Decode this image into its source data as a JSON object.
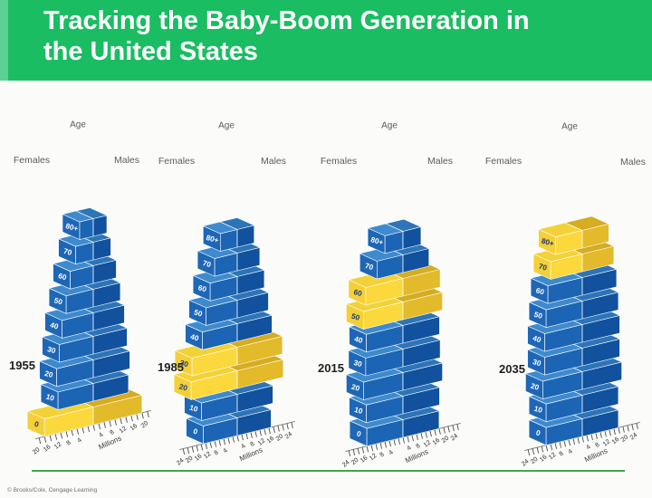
{
  "header": {
    "title_line1": "Tracking the Baby-Boom Generation in",
    "title_line2": "the United States",
    "bg_color": "#1abd62",
    "accent_strip_color": "#5bd092"
  },
  "labels": {
    "age": "Age",
    "females": "Females",
    "males": "Males"
  },
  "credit": "© Brooks/Cole, Cengage Learning",
  "footer": {
    "underline_color": "#43a649"
  },
  "colors": {
    "blue": {
      "front_f": "#1b65b4",
      "front_m": "#11519e",
      "top_f": "#3e8ace",
      "top_m": "#2d74b8",
      "cap": "#1e66b6",
      "label": "#ffffff"
    },
    "yellow": {
      "front_f": "#fbd83b",
      "front_m": "#e2ba2a",
      "top_f": "#f3d238",
      "top_m": "#d6ac20",
      "cap": "#f4cf38",
      "label": "#1c3a70"
    },
    "axis": {
      "line": "#7a7a7a",
      "tick": "#4a4a4a",
      "text": "#2c2c2c"
    }
  },
  "chart_data": [
    {
      "type": "population-pyramid",
      "year": "1955",
      "axis_unit": "Millions",
      "axis_max_millions": 20,
      "tick_step_millions": 2,
      "tick_label_step_millions": 4,
      "sides": [
        "Females",
        "Males"
      ],
      "age_groups": [
        "0",
        "10",
        "20",
        "30",
        "40",
        "50",
        "60",
        "70",
        "80+"
      ],
      "millions_per_side": [
        18,
        13,
        13.5,
        12.5,
        11.5,
        10,
        8.5,
        6.5,
        5
      ],
      "babyboom_ages": [
        "0"
      ]
    },
    {
      "type": "population-pyramid",
      "year": "1985",
      "axis_unit": "Millions",
      "axis_max_millions": 24,
      "tick_step_millions": 2,
      "tick_label_step_millions": 4,
      "sides": [
        "Females",
        "Males"
      ],
      "age_groups": [
        "0",
        "10",
        "20",
        "30",
        "40",
        "50",
        "60",
        "70",
        "80+"
      ],
      "millions_per_side": [
        15,
        15.8,
        20.4,
        20,
        15.4,
        13.8,
        12,
        10,
        7.5
      ],
      "babyboom_ages": [
        "20",
        "30"
      ]
    },
    {
      "type": "population-pyramid",
      "year": "2015",
      "axis_unit": "Millions",
      "axis_max_millions": 24,
      "tick_step_millions": 2,
      "tick_label_step_millions": 4,
      "sides": [
        "Females",
        "Males"
      ],
      "age_groups": [
        "0",
        "10",
        "20",
        "30",
        "40",
        "50",
        "60",
        "70",
        "80+"
      ],
      "millions_per_side": [
        16,
        16.2,
        17.5,
        16.5,
        16.2,
        17.5,
        16.5,
        11.5,
        8
      ],
      "babyboom_ages": [
        "50",
        "60"
      ]
    },
    {
      "type": "population-pyramid",
      "year": "2035",
      "axis_unit": "Millions",
      "axis_max_millions": 24,
      "tick_step_millions": 2,
      "tick_label_step_millions": 4,
      "sides": [
        "Females",
        "Males"
      ],
      "age_groups": [
        "0",
        "10",
        "20",
        "30",
        "40",
        "50",
        "60",
        "70",
        "80+"
      ],
      "millions_per_side": [
        16,
        16,
        17.5,
        16.6,
        16.6,
        16,
        15.2,
        14,
        11.8
      ],
      "babyboom_ages": [
        "70",
        "80+"
      ]
    }
  ]
}
